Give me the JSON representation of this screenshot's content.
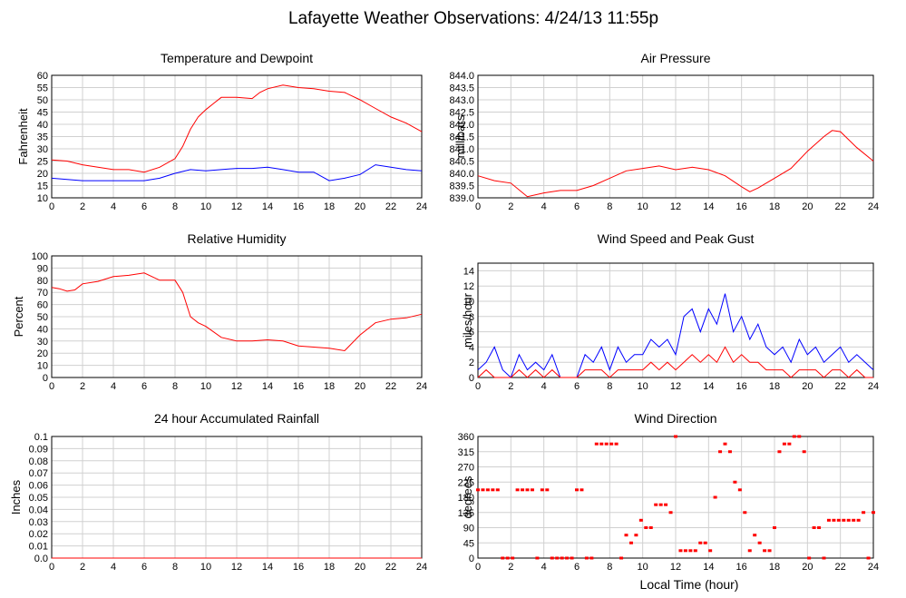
{
  "title": "Lafayette Weather Observations: 4/24/13 11:55p",
  "xlabel": "Local Time (hour)",
  "chart_data": [
    {
      "type": "line",
      "title": "Temperature and Dewpoint",
      "ylabel": "Fahrenheit",
      "xlim": [
        0,
        24
      ],
      "ylim": [
        10,
        60
      ],
      "xticks": [
        0,
        2,
        4,
        6,
        8,
        10,
        12,
        14,
        16,
        18,
        20,
        22,
        24
      ],
      "yticks": [
        "10",
        "15",
        "20",
        "25",
        "30",
        "35",
        "40",
        "45",
        "50",
        "55",
        "60"
      ],
      "grid": true,
      "series": [
        {
          "color": "#ff0000",
          "x": [
            0,
            1,
            2,
            3,
            4,
            5,
            6,
            7,
            8,
            8.5,
            9,
            9.5,
            10,
            10.5,
            11,
            12,
            13,
            13.5,
            14,
            15,
            16,
            17,
            18,
            19,
            20,
            21,
            22,
            23,
            24
          ],
          "values": [
            25.5,
            25,
            23.5,
            22.5,
            21.5,
            21.5,
            20.5,
            22.5,
            26,
            31,
            38,
            43,
            46,
            48.5,
            51,
            51,
            50.5,
            53,
            54.5,
            56,
            55,
            54.5,
            53.5,
            53,
            50,
            46.5,
            43,
            40.5,
            37
          ]
        },
        {
          "color": "#0000ff",
          "x": [
            0,
            1,
            2,
            3,
            4,
            5,
            6,
            7,
            8,
            9,
            10,
            11,
            12,
            13,
            14,
            15,
            16,
            17,
            18,
            19,
            20,
            21,
            22,
            23,
            24
          ],
          "values": [
            18,
            17.5,
            17,
            17,
            17,
            17,
            17,
            18,
            20,
            21.5,
            21,
            21.5,
            22,
            22,
            22.5,
            21.5,
            20.5,
            20.5,
            17,
            18,
            19.5,
            23.5,
            22.5,
            21.5,
            21
          ]
        }
      ]
    },
    {
      "type": "line",
      "title": "Air Pressure",
      "ylabel": "millibars",
      "xlim": [
        0,
        24
      ],
      "ylim": [
        839.0,
        844.0
      ],
      "xticks": [
        0,
        2,
        4,
        6,
        8,
        10,
        12,
        14,
        16,
        18,
        20,
        22,
        24
      ],
      "yticks": [
        "839.0",
        "839.5",
        "840.0",
        "840.5",
        "841.0",
        "841.5",
        "842.0",
        "842.5",
        "843.0",
        "843.5",
        "844.0"
      ],
      "grid": true,
      "series": [
        {
          "color": "#ff0000",
          "x": [
            0,
            1,
            2,
            3,
            4,
            5,
            6,
            7,
            8,
            9,
            10,
            11,
            12,
            13,
            14,
            15,
            16,
            16.5,
            17,
            18,
            19,
            20,
            21,
            21.5,
            22,
            23,
            24
          ],
          "values": [
            839.9,
            839.7,
            839.6,
            839.05,
            839.2,
            839.3,
            839.3,
            839.5,
            839.8,
            840.1,
            840.2,
            840.3,
            840.15,
            840.25,
            840.15,
            839.9,
            839.45,
            839.25,
            839.4,
            839.8,
            840.2,
            840.9,
            841.5,
            841.75,
            841.7,
            841.05,
            840.5
          ]
        }
      ]
    },
    {
      "type": "line",
      "title": "Relative Humidity",
      "ylabel": "Percent",
      "xlim": [
        0,
        24
      ],
      "ylim": [
        0,
        100
      ],
      "xticks": [
        0,
        2,
        4,
        6,
        8,
        10,
        12,
        14,
        16,
        18,
        20,
        22,
        24
      ],
      "yticks": [
        "0",
        "10",
        "20",
        "30",
        "40",
        "50",
        "60",
        "70",
        "80",
        "90",
        "100"
      ],
      "grid": true,
      "series": [
        {
          "color": "#ff0000",
          "x": [
            0,
            0.5,
            1,
            1.5,
            2,
            3,
            4,
            5,
            6,
            7,
            8,
            8.5,
            9,
            9.5,
            10,
            11,
            12,
            13,
            14,
            15,
            16,
            17,
            18,
            19,
            20,
            21,
            22,
            23,
            24
          ],
          "values": [
            74,
            73,
            71,
            72,
            77,
            79,
            83,
            84,
            86,
            80,
            80,
            70,
            50,
            45,
            42,
            33,
            30,
            30,
            31,
            30,
            26,
            25,
            24,
            22,
            35,
            45,
            48,
            49,
            52
          ]
        }
      ]
    },
    {
      "type": "line",
      "title": "Wind Speed and Peak Gust",
      "ylabel": "miles/hour",
      "xlim": [
        0,
        24
      ],
      "ylim": [
        0,
        15
      ],
      "xticks": [
        0,
        2,
        4,
        6,
        8,
        10,
        12,
        14,
        16,
        18,
        20,
        22,
        24
      ],
      "yticks": [
        "0",
        "2",
        "4",
        "6",
        "8",
        "10",
        "12",
        "14"
      ],
      "grid": true,
      "series": [
        {
          "color": "#0000ff",
          "x": [
            0,
            0.5,
            1,
            1.5,
            2,
            2.5,
            3,
            3.5,
            4,
            4.5,
            5,
            5.5,
            6,
            6.5,
            7,
            7.5,
            8,
            8.5,
            9,
            9.5,
            10,
            10.5,
            11,
            11.5,
            12,
            12.5,
            13,
            13.5,
            14,
            14.5,
            15,
            15.5,
            16,
            16.5,
            17,
            17.5,
            18,
            18.5,
            19,
            19.5,
            20,
            20.5,
            21,
            21.5,
            22,
            22.5,
            23,
            23.5,
            24
          ],
          "values": [
            1,
            2,
            4,
            1,
            0,
            3,
            1,
            2,
            1,
            3,
            0,
            0,
            0,
            3,
            2,
            4,
            1,
            4,
            2,
            3,
            3,
            5,
            4,
            5,
            3,
            8,
            9,
            6,
            9,
            7,
            11,
            6,
            8,
            5,
            7,
            4,
            3,
            4,
            2,
            5,
            3,
            4,
            2,
            3,
            4,
            2,
            3,
            2,
            1
          ]
        },
        {
          "color": "#ff0000",
          "x": [
            0,
            0.5,
            1,
            1.5,
            2,
            2.5,
            3,
            3.5,
            4,
            4.5,
            5,
            5.5,
            6,
            6.5,
            7,
            7.5,
            8,
            8.5,
            9,
            9.5,
            10,
            10.5,
            11,
            11.5,
            12,
            12.5,
            13,
            13.5,
            14,
            14.5,
            15,
            15.5,
            16,
            16.5,
            17,
            17.5,
            18,
            18.5,
            19,
            19.5,
            20,
            20.5,
            21,
            21.5,
            22,
            22.5,
            23,
            23.5,
            24
          ],
          "values": [
            0,
            1,
            0,
            0,
            0,
            1,
            0,
            1,
            0,
            1,
            0,
            0,
            0,
            1,
            1,
            1,
            0,
            1,
            1,
            1,
            1,
            2,
            1,
            2,
            1,
            2,
            3,
            2,
            3,
            2,
            4,
            2,
            3,
            2,
            2,
            1,
            1,
            1,
            0,
            1,
            1,
            1,
            0,
            1,
            1,
            0,
            1,
            0,
            0
          ]
        }
      ]
    },
    {
      "type": "line",
      "title": "24 hour Accumulated Rainfall",
      "ylabel": "Inches",
      "xlim": [
        0,
        24
      ],
      "ylim": [
        0,
        0.1
      ],
      "xticks": [
        0,
        2,
        4,
        6,
        8,
        10,
        12,
        14,
        16,
        18,
        20,
        22,
        24
      ],
      "yticks": [
        "0.0",
        "0.01",
        "0.02",
        "0.03",
        "0.04",
        "0.05",
        "0.06",
        "0.07",
        "0.08",
        "0.09",
        "0.1"
      ],
      "grid": true,
      "series": [
        {
          "color": "#ff0000",
          "x": [
            0,
            24
          ],
          "values": [
            0,
            0
          ]
        }
      ]
    },
    {
      "type": "scatter",
      "title": "Wind Direction",
      "ylabel": "degrees",
      "xlim": [
        0,
        24
      ],
      "ylim": [
        0,
        360
      ],
      "xticks": [
        0,
        2,
        4,
        6,
        8,
        10,
        12,
        14,
        16,
        18,
        20,
        22,
        24
      ],
      "yticks": [
        "0",
        "45",
        "90",
        "135",
        "180",
        "225",
        "270",
        "315",
        "360"
      ],
      "grid": true,
      "series": [
        {
          "color": "#ff0000",
          "x": [
            0,
            0.3,
            0.6,
            0.9,
            1.2,
            1.5,
            1.8,
            2.1,
            2.4,
            2.7,
            3.0,
            3.3,
            3.6,
            3.9,
            4.2,
            4.5,
            4.8,
            5.1,
            5.4,
            5.7,
            6.0,
            6.3,
            6.6,
            6.9,
            7.2,
            7.5,
            7.8,
            8.1,
            8.4,
            8.7,
            9.0,
            9.3,
            9.6,
            9.9,
            10.2,
            10.5,
            10.8,
            11.1,
            11.4,
            11.7,
            12.0,
            12.3,
            12.6,
            12.9,
            13.2,
            13.5,
            13.8,
            14.1,
            14.4,
            14.7,
            15.0,
            15.3,
            15.6,
            15.9,
            16.2,
            16.5,
            16.8,
            17.1,
            17.4,
            17.7,
            18.0,
            18.3,
            18.6,
            18.9,
            19.2,
            19.5,
            19.8,
            20.1,
            20.4,
            20.7,
            21.0,
            21.3,
            21.6,
            21.9,
            22.2,
            22.5,
            22.8,
            23.1,
            23.4,
            23.7,
            24.0
          ],
          "values": [
            202,
            202,
            202,
            202,
            202,
            0,
            0,
            0,
            202,
            202,
            202,
            202,
            0,
            202,
            202,
            0,
            0,
            0,
            0,
            0,
            202,
            202,
            0,
            0,
            338,
            338,
            338,
            338,
            338,
            0,
            68,
            45,
            68,
            112,
            90,
            90,
            158,
            158,
            158,
            135,
            360,
            22,
            22,
            22,
            22,
            45,
            45,
            22,
            180,
            315,
            338,
            315,
            225,
            202,
            135,
            22,
            68,
            45,
            22,
            22,
            90,
            315,
            338,
            338,
            360,
            360,
            315,
            0,
            90,
            90,
            0,
            112,
            112,
            112,
            112,
            112,
            112,
            112,
            135,
            0,
            135
          ]
        }
      ]
    }
  ]
}
